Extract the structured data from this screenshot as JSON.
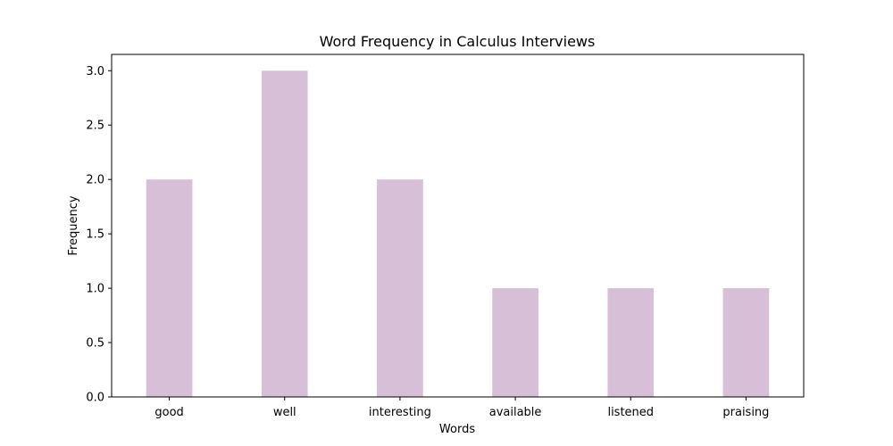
{
  "chart_data": {
    "type": "bar",
    "title": "Word Frequency in Calculus Interviews",
    "xlabel": "Words",
    "ylabel": "Frequency",
    "categories": [
      "good",
      "well",
      "interesting",
      "available",
      "listened",
      "praising"
    ],
    "values": [
      2,
      3,
      2,
      1,
      1,
      1
    ],
    "ylim": [
      0,
      3.15
    ],
    "yticks": [
      "0.0",
      "0.5",
      "1.0",
      "1.5",
      "2.0",
      "2.5",
      "3.0"
    ],
    "bar_color": "#d8bfd8",
    "grid": false,
    "legend": "none"
  }
}
